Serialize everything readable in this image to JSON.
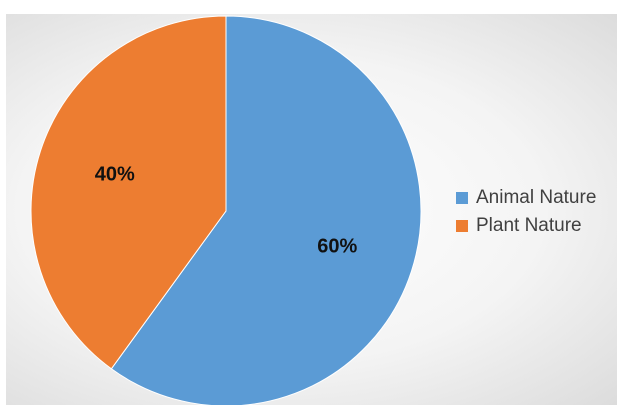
{
  "chart_data": {
    "type": "pie",
    "title": "",
    "categories": [
      "Animal Nature",
      "Plant Nature"
    ],
    "values": [
      60,
      40
    ],
    "unit": "%",
    "data_labels": [
      "60%",
      "40%"
    ],
    "colors": [
      "#5B9BD5",
      "#ED7D31"
    ],
    "legend_position": "right",
    "start_angle": "12 o'clock, clockwise"
  }
}
